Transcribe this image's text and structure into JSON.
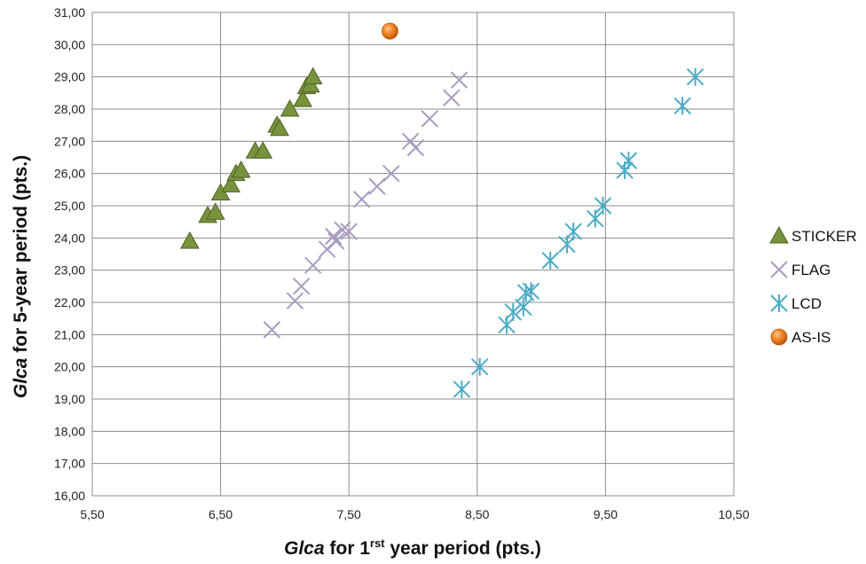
{
  "chart_data": {
    "type": "scatter",
    "xlabel": {
      "italic": "Glca",
      "main": " for 1",
      "sup": "rst",
      "end": " year period (pts.)"
    },
    "ylabel": {
      "italic": "Glca",
      "rest": " for 5-year period (pts.)"
    },
    "xlim": [
      5.5,
      10.5
    ],
    "ylim": [
      16,
      31
    ],
    "x_ticks": [
      5.5,
      6.5,
      7.5,
      8.5,
      9.5,
      10.5
    ],
    "x_tick_labels": [
      "5,50",
      "6,50",
      "7,50",
      "8,50",
      "9,50",
      "10,50"
    ],
    "y_ticks": [
      16,
      17,
      18,
      19,
      20,
      21,
      22,
      23,
      24,
      25,
      26,
      27,
      28,
      29,
      30,
      31
    ],
    "y_tick_labels": [
      "16,00",
      "17,00",
      "18,00",
      "19,00",
      "20,00",
      "21,00",
      "22,00",
      "23,00",
      "24,00",
      "25,00",
      "26,00",
      "27,00",
      "28,00",
      "29,00",
      "30,00",
      "31,00"
    ],
    "grid": true,
    "legend_position": "right",
    "series": [
      {
        "name": "STICKER",
        "marker": "triangle",
        "color": "#77933C",
        "stroke": "#4F6228",
        "points": [
          [
            6.26,
            23.9
          ],
          [
            6.4,
            24.7
          ],
          [
            6.46,
            24.8
          ],
          [
            6.5,
            25.4
          ],
          [
            6.58,
            25.65
          ],
          [
            6.62,
            26.0
          ],
          [
            6.66,
            26.1
          ],
          [
            6.77,
            26.7
          ],
          [
            6.83,
            26.7
          ],
          [
            6.94,
            27.5
          ],
          [
            6.96,
            27.4
          ],
          [
            7.04,
            28.0
          ],
          [
            7.14,
            28.3
          ],
          [
            7.17,
            28.7
          ],
          [
            7.2,
            28.75
          ],
          [
            7.22,
            29.0
          ]
        ]
      },
      {
        "name": "FLAG",
        "marker": "x",
        "color": "#A99BC0",
        "points": [
          [
            6.9,
            21.15
          ],
          [
            7.08,
            22.05
          ],
          [
            7.13,
            22.5
          ],
          [
            7.22,
            23.15
          ],
          [
            7.33,
            23.65
          ],
          [
            7.38,
            24.05
          ],
          [
            7.4,
            23.9
          ],
          [
            7.45,
            24.25
          ],
          [
            7.5,
            24.2
          ],
          [
            7.6,
            25.2
          ],
          [
            7.72,
            25.6
          ],
          [
            7.83,
            26.0
          ],
          [
            7.98,
            27.0
          ],
          [
            8.02,
            26.8
          ],
          [
            8.13,
            27.7
          ],
          [
            8.3,
            28.35
          ],
          [
            8.36,
            28.9
          ]
        ]
      },
      {
        "name": "LCD",
        "marker": "star",
        "color": "#4BACC6",
        "points": [
          [
            8.38,
            19.3
          ],
          [
            8.52,
            20.0
          ],
          [
            8.73,
            21.3
          ],
          [
            8.78,
            21.7
          ],
          [
            8.86,
            21.85
          ],
          [
            8.88,
            22.3
          ],
          [
            8.92,
            22.35
          ],
          [
            9.07,
            23.3
          ],
          [
            9.2,
            23.8
          ],
          [
            9.25,
            24.2
          ],
          [
            9.42,
            24.6
          ],
          [
            9.48,
            25.0
          ],
          [
            9.65,
            26.1
          ],
          [
            9.68,
            26.4
          ],
          [
            10.1,
            28.1
          ],
          [
            10.2,
            29.0
          ]
        ]
      },
      {
        "name": "AS-IS",
        "marker": "circle",
        "color": "#E46C0A",
        "points": [
          [
            7.82,
            30.42
          ]
        ]
      }
    ]
  }
}
